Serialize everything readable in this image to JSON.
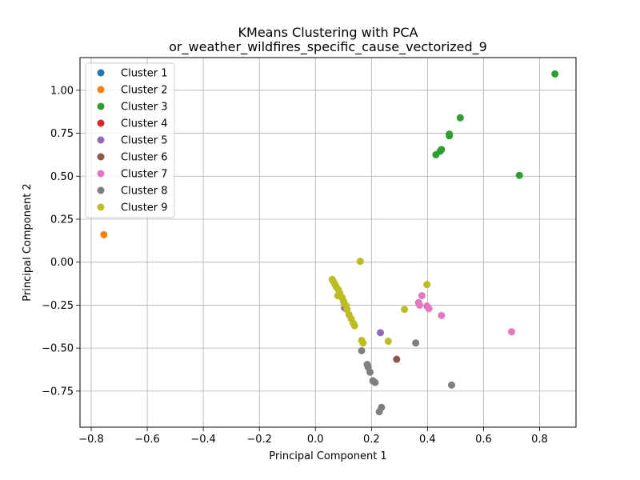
{
  "chart_data": {
    "type": "scatter",
    "title": "KMeans Clustering with PCA",
    "subtitle": "or_weather_wildfires_specific_cause_vectorized_9",
    "xlabel": "Principal Component 1",
    "ylabel": "Principal Component 2",
    "xlim": [
      -0.84,
      0.93
    ],
    "ylim": [
      -0.96,
      1.19
    ],
    "xticks": [
      -0.8,
      -0.6,
      -0.4,
      -0.2,
      0.0,
      0.2,
      0.4,
      0.6,
      0.8
    ],
    "xtick_labels": [
      "−0.8",
      "−0.6",
      "−0.4",
      "−0.2",
      "0.0",
      "0.2",
      "0.4",
      "0.6",
      "0.8"
    ],
    "yticks": [
      -0.75,
      -0.5,
      -0.25,
      0.0,
      0.25,
      0.5,
      0.75,
      1.0
    ],
    "ytick_labels": [
      "−0.75",
      "−0.50",
      "−0.25",
      "0.00",
      "0.25",
      "0.50",
      "0.75",
      "1.00"
    ],
    "grid": true,
    "legend_position": "top-left",
    "series": [
      {
        "name": "Cluster 1",
        "color": "#1f77b4",
        "points": []
      },
      {
        "name": "Cluster 2",
        "color": "#ff7f0e",
        "points": [
          [
            -0.755,
            0.16
          ]
        ]
      },
      {
        "name": "Cluster 3",
        "color": "#2ca02c",
        "points": [
          [
            0.855,
            1.095
          ],
          [
            0.517,
            0.84
          ],
          [
            0.478,
            0.745
          ],
          [
            0.478,
            0.735
          ],
          [
            0.45,
            0.655
          ],
          [
            0.445,
            0.645
          ],
          [
            0.43,
            0.625
          ],
          [
            0.728,
            0.505
          ]
        ]
      },
      {
        "name": "Cluster 4",
        "color": "#d62728",
        "points": []
      },
      {
        "name": "Cluster 5",
        "color": "#9467bd",
        "points": [
          [
            0.232,
            -0.41
          ],
          [
            0.108,
            -0.27
          ],
          [
            0.104,
            -0.265
          ]
        ]
      },
      {
        "name": "Cluster 6",
        "color": "#8c564b",
        "points": [
          [
            0.29,
            -0.565
          ]
        ]
      },
      {
        "name": "Cluster 7",
        "color": "#e377c2",
        "points": [
          [
            0.38,
            -0.195
          ],
          [
            0.368,
            -0.235
          ],
          [
            0.372,
            -0.25
          ],
          [
            0.398,
            -0.255
          ],
          [
            0.405,
            -0.27
          ],
          [
            0.45,
            -0.31
          ],
          [
            0.7,
            -0.405
          ]
        ]
      },
      {
        "name": "Cluster 8",
        "color": "#7f7f7f",
        "points": [
          [
            0.358,
            -0.47
          ],
          [
            0.165,
            -0.515
          ],
          [
            0.185,
            -0.595
          ],
          [
            0.188,
            -0.61
          ],
          [
            0.195,
            -0.64
          ],
          [
            0.205,
            -0.69
          ],
          [
            0.213,
            -0.7
          ],
          [
            0.486,
            -0.715
          ],
          [
            0.236,
            -0.845
          ],
          [
            0.228,
            -0.87
          ]
        ]
      },
      {
        "name": "Cluster 9",
        "color": "#bcbd22",
        "points": [
          [
            0.16,
            0.005
          ],
          [
            0.06,
            -0.1
          ],
          [
            0.065,
            -0.115
          ],
          [
            0.07,
            -0.13
          ],
          [
            0.075,
            -0.145
          ],
          [
            0.082,
            -0.16
          ],
          [
            0.087,
            -0.18
          ],
          [
            0.08,
            -0.195
          ],
          [
            0.095,
            -0.205
          ],
          [
            0.1,
            -0.225
          ],
          [
            0.103,
            -0.24
          ],
          [
            0.11,
            -0.255
          ],
          [
            0.113,
            -0.275
          ],
          [
            0.12,
            -0.305
          ],
          [
            0.128,
            -0.33
          ],
          [
            0.135,
            -0.355
          ],
          [
            0.14,
            -0.37
          ],
          [
            0.398,
            -0.13
          ],
          [
            0.318,
            -0.275
          ],
          [
            0.165,
            -0.455
          ],
          [
            0.17,
            -0.47
          ],
          [
            0.26,
            -0.46
          ]
        ]
      }
    ]
  }
}
